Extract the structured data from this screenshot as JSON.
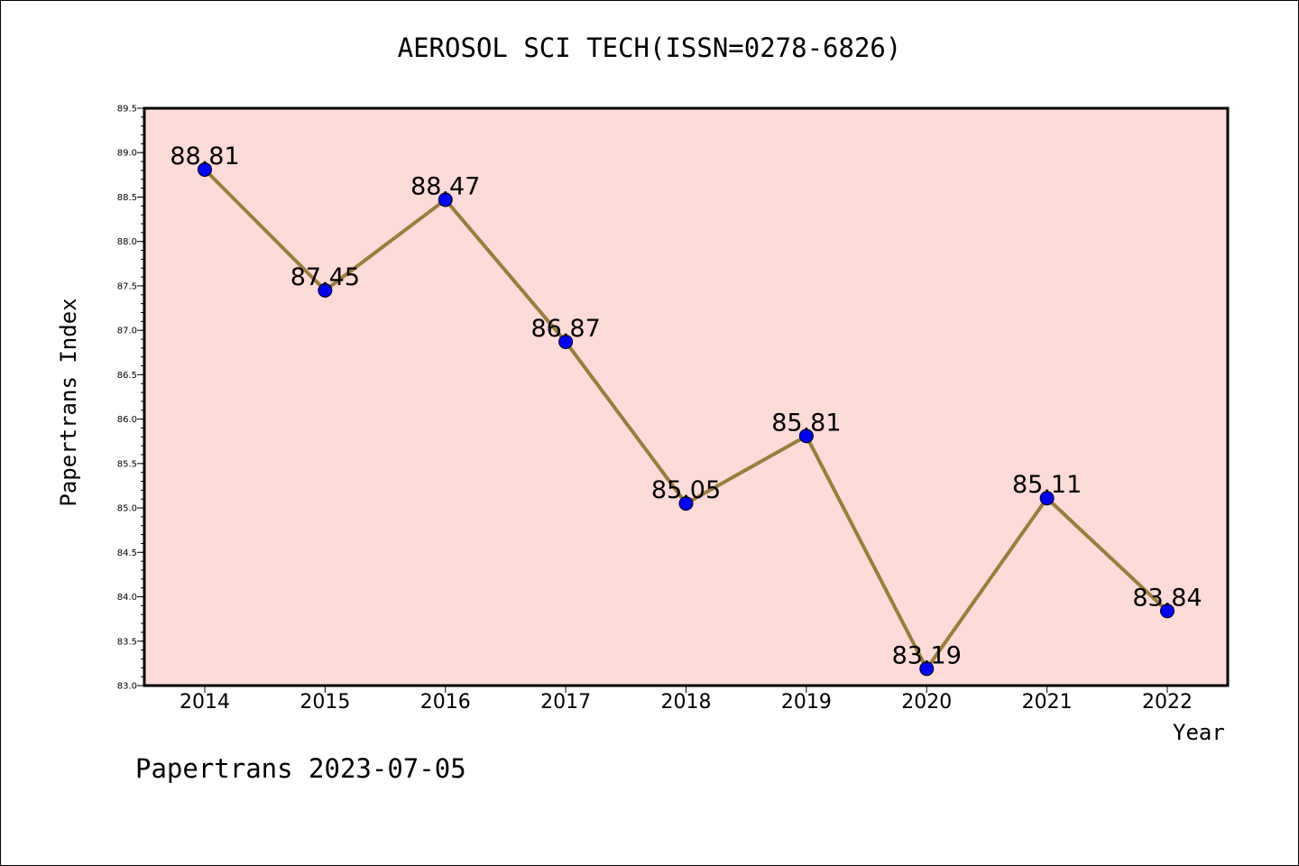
{
  "page": {
    "title": "AEROSOL SCI TECH(ISSN=0278-6826)",
    "footer": "Papertrans 2023-07-05"
  },
  "chart_data": {
    "type": "line",
    "title": "AEROSOL SCI TECH(ISSN=0278-6826)",
    "xlabel": "Year",
    "ylabel": "Papertrans Index",
    "categories": [
      "2014",
      "2015",
      "2016",
      "2017",
      "2018",
      "2019",
      "2020",
      "2021",
      "2022"
    ],
    "values": [
      88.81,
      87.45,
      88.47,
      86.87,
      85.05,
      85.81,
      83.19,
      85.11,
      83.84
    ],
    "data_labels": [
      "88.81",
      "87.45",
      "88.47",
      "86.87",
      "85.05",
      "85.81",
      "83.19",
      "85.11",
      "83.84"
    ],
    "ylim": [
      83.0,
      89.5
    ],
    "yticks": [
      "83.0",
      "83.5",
      "84.0",
      "84.5",
      "85.0",
      "85.5",
      "86.0",
      "86.5",
      "87.0",
      "87.5",
      "88.0",
      "88.5",
      "89.0",
      "89.5"
    ],
    "grid": false,
    "colors": {
      "plot_background": "#fddbd9",
      "line": "#9a7e3a",
      "marker": "#0000ff"
    }
  }
}
